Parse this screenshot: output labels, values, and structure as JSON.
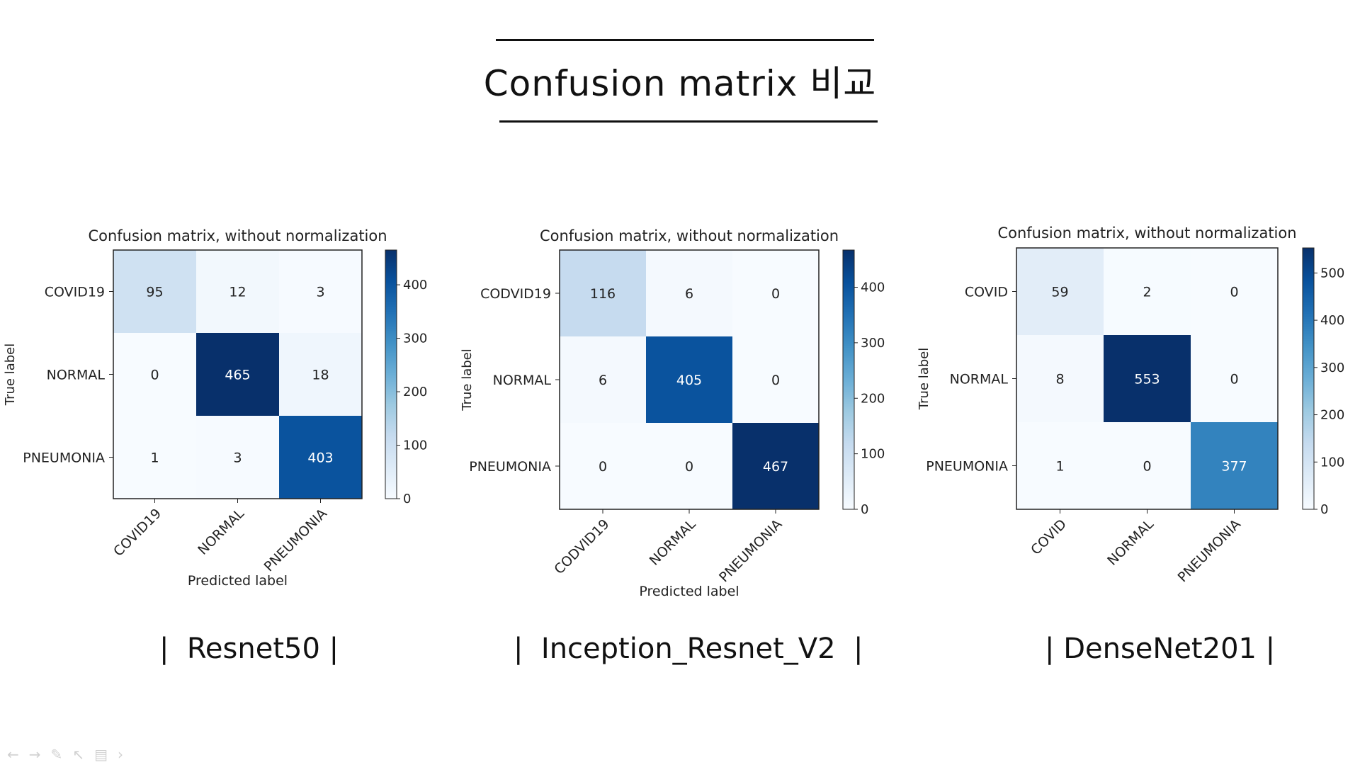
{
  "slide": {
    "title": "Confusion matrix 비교",
    "captions": [
      "|  Resnet50 |",
      "|  Inception_Resnet_V2  |",
      "| DenseNet201 |"
    ],
    "toolbar_icons": [
      "arrow-left-icon",
      "arrow-right-icon",
      "pen-icon",
      "pointer-icon",
      "slides-icon",
      "chevron-right-icon"
    ]
  },
  "colors": {
    "cmap": [
      "#f7fbff",
      "#deebf7",
      "#c6dbef",
      "#9ecae1",
      "#6baed6",
      "#4292c6",
      "#2171b5",
      "#08519c",
      "#08306b"
    ]
  },
  "chart_data": [
    {
      "type": "heatmap",
      "title": "Confusion matrix, without normalization",
      "xlabel": "Predicted label",
      "ylabel": "True label",
      "categories_x": [
        "COVID19",
        "NORMAL",
        "PNEUMONIA"
      ],
      "categories_y": [
        "COVID19",
        "NORMAL",
        "PNEUMONIA"
      ],
      "matrix": [
        [
          95,
          12,
          3
        ],
        [
          0,
          465,
          18
        ],
        [
          1,
          3,
          403
        ]
      ],
      "colorbar_ticks": [
        0,
        100,
        200,
        300,
        400
      ],
      "vmax": 465
    },
    {
      "type": "heatmap",
      "title": "Confusion matrix, without normalization",
      "xlabel": "Predicted label",
      "ylabel": "True label",
      "categories_x": [
        "CODVID19",
        "NORMAL",
        "PNEUMONIA"
      ],
      "categories_y": [
        "CODVID19",
        "NORMAL",
        "PNEUMONIA"
      ],
      "matrix": [
        [
          116,
          6,
          0
        ],
        [
          6,
          405,
          0
        ],
        [
          0,
          0,
          467
        ]
      ],
      "colorbar_ticks": [
        0,
        100,
        200,
        300,
        400
      ],
      "vmax": 467
    },
    {
      "type": "heatmap",
      "title": "Confusion matrix, without normalization",
      "xlabel": "",
      "ylabel": "True label",
      "categories_x": [
        "COVID",
        "NORMAL",
        "PNEUMONIA"
      ],
      "categories_y": [
        "COVID",
        "NORMAL",
        "PNEUMONIA"
      ],
      "matrix": [
        [
          59,
          2,
          0
        ],
        [
          8,
          553,
          0
        ],
        [
          1,
          0,
          377
        ]
      ],
      "colorbar_ticks": [
        0,
        100,
        200,
        300,
        400,
        500
      ],
      "vmax": 553
    }
  ]
}
